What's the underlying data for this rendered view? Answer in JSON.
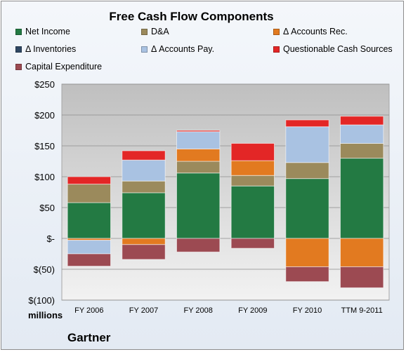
{
  "chart_data": {
    "type": "bar",
    "stacked": true,
    "title": "Free Cash Flow Components",
    "categories": [
      "FY 2006",
      "FY 2007",
      "FY 2008",
      "FY 2009",
      "FY 2010",
      "TTM 9-2011"
    ],
    "y_tick_labels": [
      "$(100)",
      "$(50)",
      "$-",
      "$50",
      "$100",
      "$150",
      "$200",
      "$250"
    ],
    "ylim": [
      -100,
      250
    ],
    "y_unit_label": "millions",
    "grid": true,
    "legend_position": "top",
    "series": [
      {
        "name": "Net Income",
        "color": "#237a43",
        "values": [
          58,
          74,
          106,
          85,
          97,
          130
        ]
      },
      {
        "name": "D&A",
        "color": "#9b8a5c",
        "values": [
          30,
          19,
          19,
          17,
          26,
          24
        ]
      },
      {
        "name": "Δ Accounts Rec.",
        "color": "#e27a20",
        "values": [
          -3,
          -10,
          20,
          24,
          -46,
          -46
        ]
      },
      {
        "name": "Δ Inventories",
        "color": "#2f4763",
        "values": [
          0,
          0,
          0,
          0,
          0,
          0
        ]
      },
      {
        "name": "Δ Accounts Pay.",
        "color": "#a9c2e2",
        "values": [
          -22,
          34,
          28,
          0,
          58,
          30
        ]
      },
      {
        "name": "Questionable Cash Sources",
        "color": "#e32626",
        "values": [
          12,
          15,
          2,
          28,
          11,
          14
        ]
      },
      {
        "name": "Capital Expenditure",
        "color": "#9c4a52",
        "values": [
          -20,
          -24,
          -22,
          -16,
          -24,
          -34
        ]
      }
    ]
  },
  "company": "Gartner"
}
